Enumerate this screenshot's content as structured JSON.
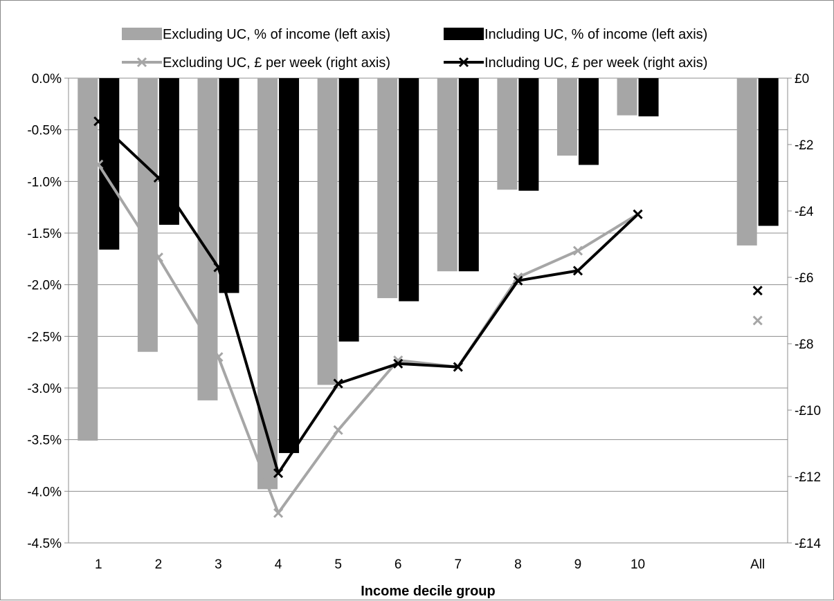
{
  "chart_data": {
    "type": "bar",
    "xlabel": "Income decile group",
    "categories": [
      "1",
      "2",
      "3",
      "4",
      "5",
      "6",
      "7",
      "8",
      "9",
      "10",
      "All"
    ],
    "left_axis": {
      "ylim": [
        -0.045,
        0
      ],
      "ticks": [
        0,
        -0.005,
        -0.01,
        -0.015,
        -0.02,
        -0.025,
        -0.03,
        -0.035,
        -0.04,
        -0.045
      ],
      "tick_labels": [
        "0.0%",
        "-0.5%",
        "-1.0%",
        "-1.5%",
        "-2.0%",
        "-2.5%",
        "-3.0%",
        "-3.5%",
        "-4.0%",
        "-4.5%"
      ]
    },
    "right_axis": {
      "ylim": [
        -14,
        0
      ],
      "ticks": [
        0,
        -2,
        -4,
        -6,
        -8,
        -10,
        -12,
        -14
      ],
      "tick_labels": [
        "£0",
        "-£2",
        "-£4",
        "-£6",
        "-£8",
        "-£10",
        "-£12",
        "-£14"
      ]
    },
    "grid": true,
    "legend_position": "top",
    "series": [
      {
        "name": "Excluding UC, % of income (left axis)",
        "kind": "bar",
        "axis": "left",
        "color": "#a6a6a6",
        "values": [
          -0.0351,
          -0.0265,
          -0.0312,
          -0.0398,
          -0.0297,
          -0.0213,
          -0.0187,
          -0.0108,
          -0.0075,
          -0.0036,
          -0.0162
        ]
      },
      {
        "name": "Including UC, % of income (left axis)",
        "kind": "bar",
        "axis": "left",
        "color": "#000000",
        "values": [
          -0.0166,
          -0.0142,
          -0.0208,
          -0.0363,
          -0.0255,
          -0.0216,
          -0.0187,
          -0.0109,
          -0.0084,
          -0.0037,
          -0.0143
        ]
      },
      {
        "name": "Excluding UC, £ per week (right axis)",
        "kind": "line",
        "axis": "right",
        "color": "#a6a6a6",
        "values": [
          -2.6,
          -5.4,
          -8.4,
          -13.1,
          -10.6,
          -8.5,
          -8.7,
          -6.0,
          -5.2,
          -4.1,
          -7.3
        ]
      },
      {
        "name": "Including UC, £ per week (right axis)",
        "kind": "line",
        "axis": "right",
        "color": "#000000",
        "values": [
          -1.3,
          -3.0,
          -5.7,
          -11.9,
          -9.2,
          -8.6,
          -8.7,
          -6.1,
          -5.8,
          -4.1,
          -6.4
        ]
      }
    ]
  }
}
